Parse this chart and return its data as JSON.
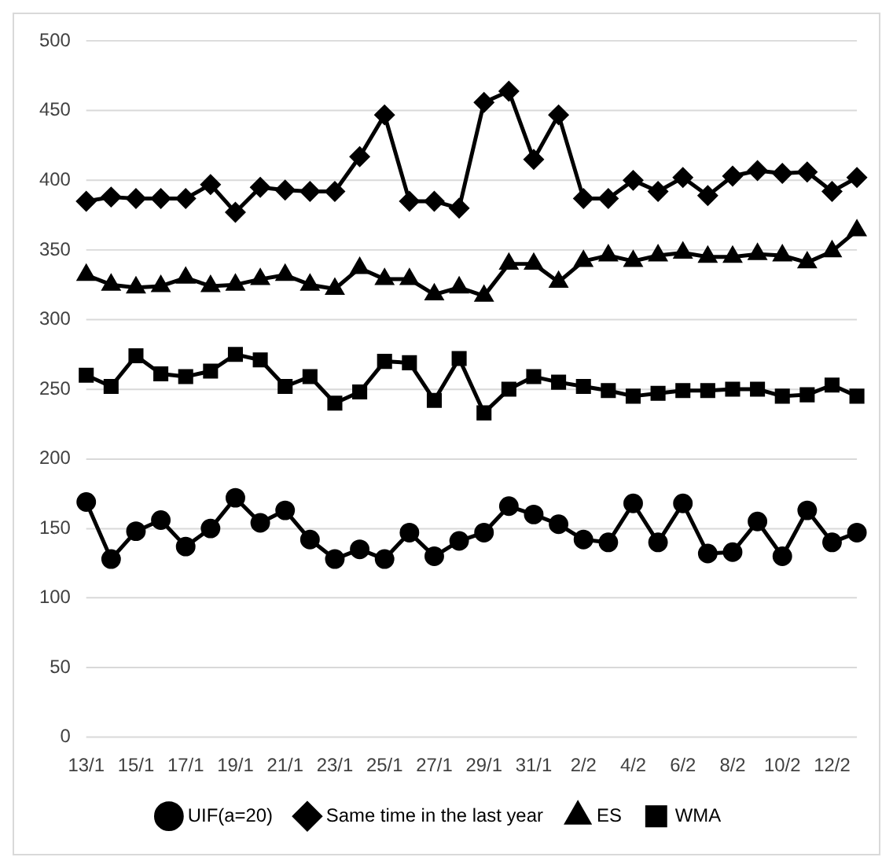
{
  "chart_data": {
    "type": "line",
    "categories": [
      "13/1",
      null,
      "15/1",
      null,
      "17/1",
      null,
      "19/1",
      null,
      "21/1",
      null,
      "23/1",
      null,
      "25/1",
      null,
      "27/1",
      null,
      "29/1",
      null,
      "31/1",
      null,
      "2/2",
      null,
      "4/2",
      null,
      "6/2",
      null,
      "8/2",
      null,
      "10/2",
      null,
      "12/2",
      null
    ],
    "ylim": [
      0,
      500
    ],
    "yticks": [
      0,
      50,
      100,
      150,
      200,
      250,
      300,
      350,
      400,
      450,
      500
    ],
    "grid": "y",
    "legend": "bottom",
    "line_style": "solid",
    "series": [
      {
        "name": "UIF(a=20)",
        "color": "#000000",
        "marker": "circle",
        "values": [
          169,
          128,
          148,
          156,
          137,
          150,
          172,
          154,
          163,
          142,
          128,
          135,
          128,
          147,
          130,
          141,
          147,
          166,
          160,
          153,
          142,
          140,
          168,
          140,
          168,
          132,
          133,
          155,
          130,
          163,
          140,
          147
        ]
      },
      {
        "name": "Same time in the last year",
        "color": "#000000",
        "marker": "diamond",
        "values": [
          385,
          388,
          387,
          387,
          387,
          397,
          377,
          395,
          393,
          392,
          392,
          417,
          447,
          385,
          385,
          380,
          456,
          464,
          415,
          447,
          387,
          387,
          400,
          392,
          402,
          389,
          403,
          407,
          405,
          406,
          392,
          402
        ]
      },
      {
        "name": "ES",
        "color": "#000000",
        "marker": "triangle",
        "values": [
          332,
          325,
          323,
          324,
          330,
          324,
          325,
          329,
          332,
          325,
          322,
          337,
          329,
          329,
          318,
          323,
          317,
          340,
          340,
          327,
          342,
          346,
          342,
          346,
          348,
          345,
          345,
          347,
          346,
          341,
          349,
          364
        ]
      },
      {
        "name": "WMA",
        "color": "#000000",
        "marker": "square",
        "values": [
          260,
          252,
          274,
          261,
          259,
          263,
          275,
          271,
          252,
          259,
          240,
          248,
          270,
          269,
          242,
          272,
          233,
          250,
          259,
          255,
          252,
          249,
          245,
          247,
          249,
          249,
          250,
          250,
          245,
          246,
          253,
          245
        ]
      }
    ]
  }
}
